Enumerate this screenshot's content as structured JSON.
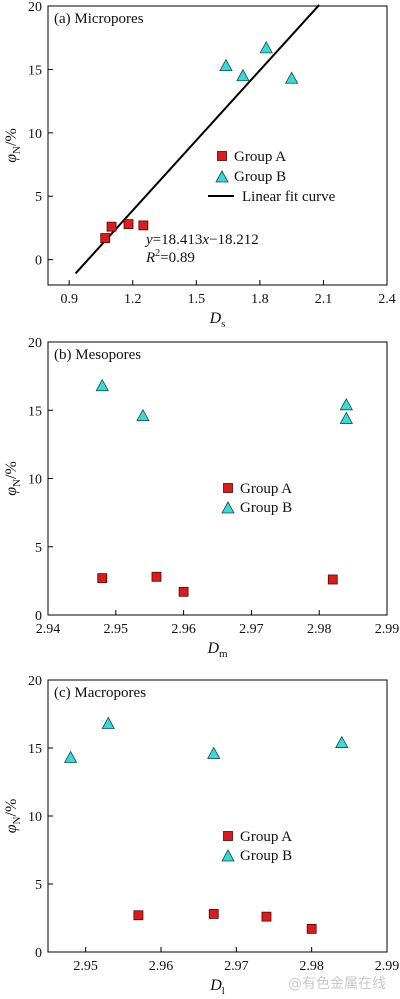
{
  "watermark": "@有色金属在线",
  "colors": {
    "group_a": "#d61e1e",
    "group_b": "#3ed6d6",
    "fit_line": "#000000"
  },
  "chart_data": [
    {
      "type": "scatter",
      "panel_label": "(a) Micropores",
      "xlabel_main": "D",
      "xlabel_sub": "s",
      "ylabel_main": "φ",
      "ylabel_sub": "N",
      "ylabel_suffix": "/%",
      "xlim": [
        0.8,
        2.4
      ],
      "ylim": [
        -2,
        20
      ],
      "xticks": [
        0.9,
        1.2,
        1.5,
        1.8,
        2.1,
        2.4
      ],
      "yticks": [
        0,
        5,
        10,
        15,
        20
      ],
      "legend": {
        "placement": "lower-right",
        "entries": [
          "Group A",
          "Group B",
          "Linear fit curve"
        ]
      },
      "series": [
        {
          "name": "Group A",
          "marker": "square",
          "points": [
            [
              1.07,
              1.7
            ],
            [
              1.1,
              2.6
            ],
            [
              1.18,
              2.8
            ],
            [
              1.25,
              2.7
            ]
          ]
        },
        {
          "name": "Group B",
          "marker": "triangle",
          "points": [
            [
              1.64,
              15.3
            ],
            [
              1.72,
              14.5
            ],
            [
              1.83,
              16.7
            ],
            [
              1.95,
              14.3
            ]
          ]
        }
      ],
      "fit": {
        "slope": 18.413,
        "intercept": -18.212,
        "x_range": [
          0.93,
          2.08
        ]
      },
      "annotation": {
        "equation": "y=18.413x−18.212",
        "r2_label": "R",
        "r2_value": "=0.89"
      }
    },
    {
      "type": "scatter",
      "panel_label": "(b) Mesopores",
      "xlabel_main": "D",
      "xlabel_sub": "m",
      "ylabel_main": "φ",
      "ylabel_sub": "N",
      "ylabel_suffix": "/%",
      "xlim": [
        2.94,
        2.99
      ],
      "ylim": [
        0,
        20
      ],
      "xticks": [
        2.94,
        2.95,
        2.96,
        2.97,
        2.98,
        2.99
      ],
      "yticks": [
        0,
        5,
        10,
        15,
        20
      ],
      "legend": {
        "placement": "center-right",
        "entries": [
          "Group A",
          "Group B"
        ]
      },
      "series": [
        {
          "name": "Group A",
          "marker": "square",
          "points": [
            [
              2.948,
              2.7
            ],
            [
              2.956,
              2.8
            ],
            [
              2.96,
              1.7
            ],
            [
              2.982,
              2.6
            ]
          ]
        },
        {
          "name": "Group B",
          "marker": "triangle",
          "points": [
            [
              2.948,
              16.8
            ],
            [
              2.954,
              14.6
            ],
            [
              2.984,
              14.4
            ],
            [
              2.984,
              15.4
            ]
          ]
        }
      ]
    },
    {
      "type": "scatter",
      "panel_label": "(c) Macropores",
      "xlabel_main": "D",
      "xlabel_sub": "l",
      "ylabel_main": "φ",
      "ylabel_sub": "N",
      "ylabel_suffix": "/%",
      "xlim": [
        2.945,
        2.99
      ],
      "ylim": [
        0,
        20
      ],
      "xticks": [
        2.95,
        2.96,
        2.97,
        2.98,
        2.99
      ],
      "yticks": [
        0,
        5,
        10,
        15,
        20
      ],
      "legend": {
        "placement": "center-right",
        "entries": [
          "Group A",
          "Group B"
        ]
      },
      "series": [
        {
          "name": "Group A",
          "marker": "square",
          "points": [
            [
              2.957,
              2.7
            ],
            [
              2.967,
              2.8
            ],
            [
              2.974,
              2.6
            ],
            [
              2.98,
              1.7
            ]
          ]
        },
        {
          "name": "Group B",
          "marker": "triangle",
          "points": [
            [
              2.948,
              14.3
            ],
            [
              2.953,
              16.8
            ],
            [
              2.967,
              14.6
            ],
            [
              2.984,
              15.4
            ]
          ]
        }
      ]
    }
  ]
}
